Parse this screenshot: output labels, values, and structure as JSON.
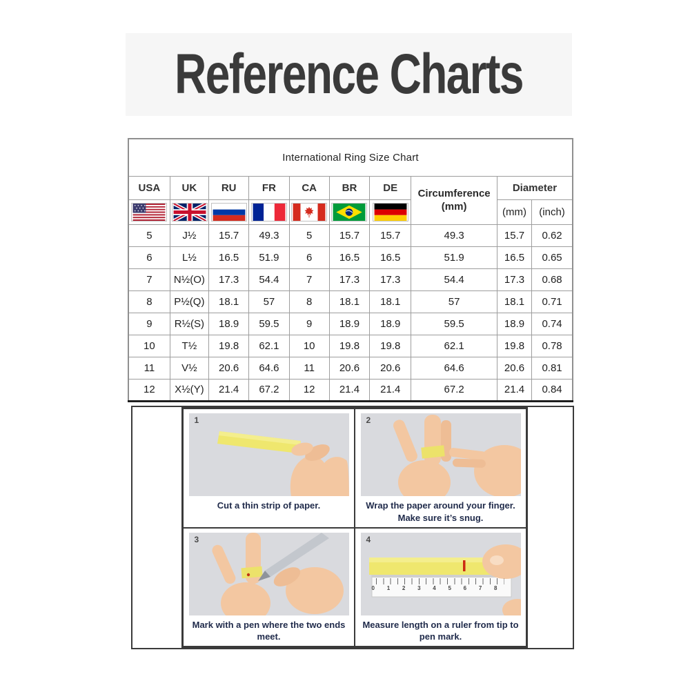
{
  "page_title": "Reference Charts",
  "ring_chart": {
    "title": "International Ring Size Chart",
    "columns": [
      "USA",
      "UK",
      "RU",
      "FR",
      "CA",
      "BR",
      "DE"
    ],
    "flag_names": [
      "usa-flag",
      "uk-flag",
      "russia-flag",
      "france-flag",
      "canada-flag",
      "brazil-flag",
      "germany-flag"
    ],
    "circumference_label": "Circumference",
    "circumference_unit": "(mm)",
    "diameter_label": "Diameter",
    "diameter_mm": "(mm)",
    "diameter_inch": "(inch)",
    "rows": [
      {
        "usa": "5",
        "uk": "J½",
        "ru": "15.7",
        "fr": "49.3",
        "ca": "5",
        "br": "15.7",
        "de": "15.7",
        "circumference": "49.3",
        "diameter_mm": "15.7",
        "diameter_inch": "0.62"
      },
      {
        "usa": "6",
        "uk": "L½",
        "ru": "16.5",
        "fr": "51.9",
        "ca": "6",
        "br": "16.5",
        "de": "16.5",
        "circumference": "51.9",
        "diameter_mm": "16.5",
        "diameter_inch": "0.65"
      },
      {
        "usa": "7",
        "uk": "N½(O)",
        "ru": "17.3",
        "fr": "54.4",
        "ca": "7",
        "br": "17.3",
        "de": "17.3",
        "circumference": "54.4",
        "diameter_mm": "17.3",
        "diameter_inch": "0.68"
      },
      {
        "usa": "8",
        "uk": "P½(Q)",
        "ru": "18.1",
        "fr": "57",
        "ca": "8",
        "br": "18.1",
        "de": "18.1",
        "circumference": "57",
        "diameter_mm": "18.1",
        "diameter_inch": "0.71"
      },
      {
        "usa": "9",
        "uk": "R½(S)",
        "ru": "18.9",
        "fr": "59.5",
        "ca": "9",
        "br": "18.9",
        "de": "18.9",
        "circumference": "59.5",
        "diameter_mm": "18.9",
        "diameter_inch": "0.74"
      },
      {
        "usa": "10",
        "uk": "T½",
        "ru": "19.8",
        "fr": "62.1",
        "ca": "10",
        "br": "19.8",
        "de": "19.8",
        "circumference": "62.1",
        "diameter_mm": "19.8",
        "diameter_inch": "0.78"
      },
      {
        "usa": "11",
        "uk": "V½",
        "ru": "20.6",
        "fr": "64.6",
        "ca": "11",
        "br": "20.6",
        "de": "20.6",
        "circumference": "64.6",
        "diameter_mm": "20.6",
        "diameter_inch": "0.81"
      },
      {
        "usa": "12",
        "uk": "X½(Y)",
        "ru": "21.4",
        "fr": "67.2",
        "ca": "12",
        "br": "21.4",
        "de": "21.4",
        "circumference": "67.2",
        "diameter_mm": "21.4",
        "diameter_inch": "0.84"
      }
    ]
  },
  "instructions": {
    "steps": [
      {
        "number": "1",
        "caption": "Cut a thin strip of paper."
      },
      {
        "number": "2",
        "caption": "Wrap the paper around your finger. Make sure it’s snug."
      },
      {
        "number": "3",
        "caption": "Mark with a pen where the two ends meet."
      },
      {
        "number": "4",
        "caption": "Measure length on a ruler from tip to pen mark."
      }
    ],
    "ruler_numbers": [
      "0",
      "1",
      "2",
      "3",
      "4",
      "5",
      "6",
      "7",
      "8"
    ]
  },
  "colors": {
    "banner_background": "#f6f6f6",
    "paper_strip_yellow": "#efe76e",
    "caption_navy": "#1f2a4a",
    "photo_background": "#d9dade",
    "pen_mark_red": "#cc2b12"
  }
}
